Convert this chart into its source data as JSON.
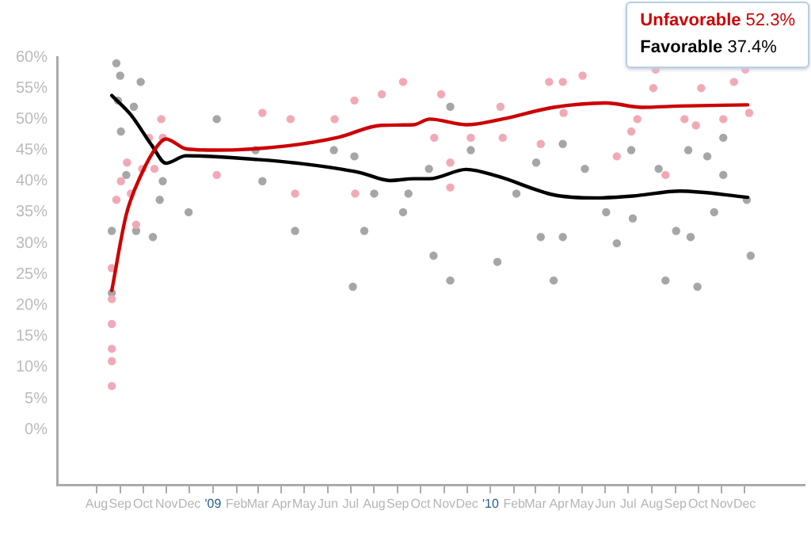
{
  "chart_data": {
    "type": "scatter",
    "xlim": [
      "2008-06-10",
      "2011-02-18"
    ],
    "xticks": [
      {
        "value": "2008-08-01",
        "label": "Aug"
      },
      {
        "value": "2008-09-01",
        "label": "Sep"
      },
      {
        "value": "2008-10-01",
        "label": "Oct"
      },
      {
        "value": "2008-11-01",
        "label": "Nov"
      },
      {
        "value": "2008-12-01",
        "label": "Dec"
      },
      {
        "value": "2009-01-01",
        "label": "'09"
      },
      {
        "value": "2009-02-01",
        "label": "Feb"
      },
      {
        "value": "2009-03-01",
        "label": "Mar"
      },
      {
        "value": "2009-04-01",
        "label": "Apr"
      },
      {
        "value": "2009-05-01",
        "label": "May"
      },
      {
        "value": "2009-06-01",
        "label": "Jun"
      },
      {
        "value": "2009-07-01",
        "label": "Jul"
      },
      {
        "value": "2009-08-01",
        "label": "Aug"
      },
      {
        "value": "2009-09-01",
        "label": "Sep"
      },
      {
        "value": "2009-10-01",
        "label": "Oct"
      },
      {
        "value": "2009-11-01",
        "label": "Nov"
      },
      {
        "value": "2009-12-01",
        "label": "Dec"
      },
      {
        "value": "2010-01-01",
        "label": "'10"
      },
      {
        "value": "2010-02-01",
        "label": "Feb"
      },
      {
        "value": "2010-03-01",
        "label": "Mar"
      },
      {
        "value": "2010-04-01",
        "label": "Apr"
      },
      {
        "value": "2010-05-01",
        "label": "May"
      },
      {
        "value": "2010-06-01",
        "label": "Jun"
      },
      {
        "value": "2010-07-01",
        "label": "Jul"
      },
      {
        "value": "2010-08-01",
        "label": "Aug"
      },
      {
        "value": "2010-09-01",
        "label": "Sep"
      },
      {
        "value": "2010-10-01",
        "label": "Oct"
      },
      {
        "value": "2010-11-01",
        "label": "Nov"
      },
      {
        "value": "2010-12-01",
        "label": "Dec"
      }
    ],
    "ylim": [
      -9,
      60
    ],
    "yticks": [
      {
        "value": 0,
        "label": "0%"
      },
      {
        "value": 5,
        "label": "5%"
      },
      {
        "value": 10,
        "label": "10%"
      },
      {
        "value": 15,
        "label": "15%"
      },
      {
        "value": 20,
        "label": "20%"
      },
      {
        "value": 25,
        "label": "25%"
      },
      {
        "value": 30,
        "label": "30%"
      },
      {
        "value": 35,
        "label": "35%"
      },
      {
        "value": 40,
        "label": "40%"
      },
      {
        "value": 45,
        "label": "45%"
      },
      {
        "value": 50,
        "label": "50%"
      },
      {
        "value": 55,
        "label": "55%"
      },
      {
        "value": 60,
        "label": "60%"
      }
    ],
    "grid": false,
    "legend": "top right",
    "annotations": [
      "52.3%",
      "37.4%"
    ],
    "series": [
      {
        "marker": "circle",
        "color": "#f2a9b6",
        "x": [
          "2008-08-21",
          "2008-08-21",
          "2008-08-21",
          "2008-08-21",
          "2008-08-21",
          "2008-08-21",
          "2008-08-27",
          "2008-09-02",
          "2008-09-10",
          "2008-09-15",
          "2008-09-22",
          "2008-09-30",
          "2008-10-09",
          "2008-10-16",
          "2008-10-25",
          "2008-10-27",
          "2009-01-06",
          "2009-03-07",
          "2009-04-13",
          "2009-04-19",
          "2009-06-10",
          "2009-07-06",
          "2009-07-07",
          "2009-08-11",
          "2009-09-08",
          "2009-10-19",
          "2009-10-28",
          "2009-11-09",
          "2009-11-09",
          "2009-12-06",
          "2010-01-14",
          "2010-01-17",
          "2010-03-08",
          "2010-03-19",
          "2010-04-06",
          "2010-04-07",
          "2010-05-02",
          "2010-06-16",
          "2010-07-05",
          "2010-07-13",
          "2010-08-03",
          "2010-08-06",
          "2010-08-19",
          "2010-09-13",
          "2010-09-28",
          "2010-10-05",
          "2010-11-03",
          "2010-11-17",
          "2010-12-02",
          "2010-12-07"
        ],
        "values": [
          21,
          17,
          13,
          11,
          7,
          26,
          37,
          40,
          43,
          38,
          33,
          42,
          47,
          42,
          50,
          47,
          41,
          51,
          50,
          38,
          50,
          53,
          38,
          54,
          56,
          47,
          54,
          43,
          39,
          47,
          52,
          47,
          46,
          56,
          56,
          51,
          57,
          44,
          48,
          50,
          55,
          58,
          41,
          50,
          49,
          55,
          50,
          56,
          58,
          51
        ]
      },
      {
        "marker": "circle",
        "color": "#a6a6a6",
        "x": [
          "2008-08-27",
          "2008-09-01",
          "2008-08-29",
          "2008-09-28",
          "2008-09-19",
          "2008-09-02",
          "2008-09-09",
          "2008-08-21",
          "2008-08-21",
          "2008-09-22",
          "2008-10-14",
          "2008-10-23",
          "2008-10-27",
          "2009-01-06",
          "2008-11-30",
          "2009-02-26",
          "2009-03-07",
          "2009-04-19",
          "2009-06-09",
          "2009-07-06",
          "2009-07-04",
          "2009-07-19",
          "2009-08-01",
          "2009-09-08",
          "2009-09-15",
          "2009-10-12",
          "2009-10-18",
          "2009-11-09",
          "2009-11-09",
          "2009-12-06",
          "2010-01-10",
          "2010-02-04",
          "2010-03-02",
          "2010-03-08",
          "2010-03-25",
          "2010-04-06",
          "2010-04-06",
          "2010-05-05",
          "2010-06-02",
          "2010-06-16",
          "2010-07-05",
          "2010-07-07",
          "2010-08-10",
          "2010-08-19",
          "2010-09-02",
          "2010-09-18",
          "2010-09-21",
          "2010-09-30",
          "2010-10-13",
          "2010-11-03",
          "2010-11-03",
          "2010-10-22",
          "2010-12-04",
          "2010-12-09"
        ],
        "values": [
          59,
          57,
          53,
          56,
          52,
          48,
          41,
          32,
          22,
          32,
          31,
          37,
          40,
          50,
          35,
          45,
          40,
          32,
          45,
          44,
          23,
          32,
          38,
          35,
          38,
          42,
          28,
          52,
          24,
          45,
          27,
          38,
          43,
          31,
          24,
          46,
          31,
          42,
          35,
          30,
          45,
          34,
          42,
          24,
          32,
          45,
          31,
          23,
          44,
          47,
          41,
          35,
          37,
          28
        ]
      },
      {
        "type": "line",
        "marker": "none",
        "name": "Unfavorable",
        "color": "#cc0000",
        "x": [
          "2008-08-21",
          "2008-09-09",
          "2008-09-30",
          "2008-10-20",
          "2008-10-31",
          "2008-11-27",
          "2009-01-04",
          "2009-04-09",
          "2009-06-16",
          "2009-08-10",
          "2009-09-22",
          "2009-10-13",
          "2009-11-30",
          "2010-01-16",
          "2010-03-25",
          "2010-06-02",
          "2010-07-19",
          "2010-09-07",
          "2010-12-05"
        ],
        "values": [
          22.4,
          34.6,
          41.4,
          45.7,
          46.8,
          45.2,
          45.0,
          45.7,
          47.1,
          49.0,
          49.1,
          50.0,
          49.1,
          50.0,
          51.9,
          52.6,
          51.9,
          52.1,
          52.3
        ]
      },
      {
        "type": "line",
        "marker": "none",
        "name": "Favorable",
        "color": "#000000",
        "x": [
          "2008-08-21",
          "2008-09-15",
          "2008-10-13",
          "2008-10-31",
          "2008-11-27",
          "2009-02-28",
          "2009-04-22",
          "2009-07-13",
          "2009-08-22",
          "2009-09-22",
          "2009-10-13",
          "2009-11-30",
          "2010-01-10",
          "2010-03-25",
          "2010-05-19",
          "2010-07-07",
          "2010-09-07",
          "2010-12-05"
        ],
        "values": [
          53.8,
          50.7,
          45.7,
          42.9,
          44.1,
          43.5,
          42.9,
          41.4,
          40.1,
          40.4,
          40.4,
          41.9,
          40.8,
          37.8,
          37.3,
          37.6,
          38.4,
          37.4
        ]
      }
    ]
  }
}
